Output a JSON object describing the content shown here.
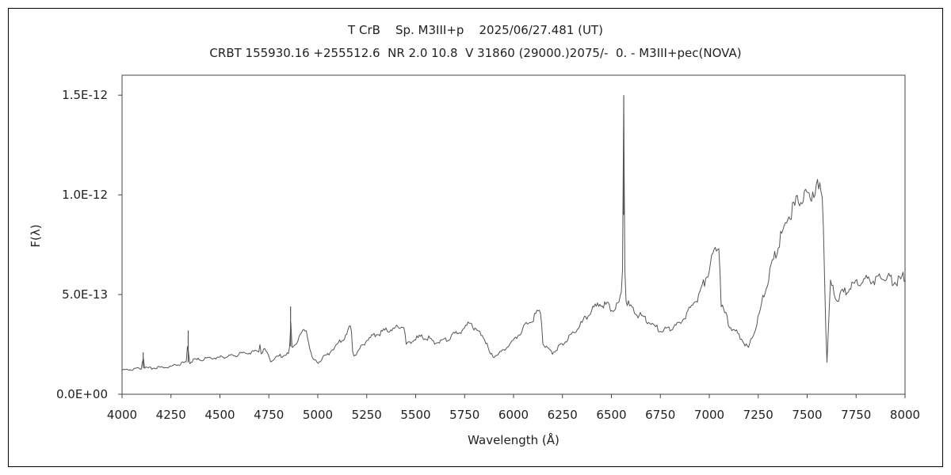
{
  "chart_data": {
    "type": "line",
    "title": "T CrB    Sp. M3III+p    2025/06/27.481 (UT)",
    "subtitle": "CRBT 155930.16 +255512.6  NR 2.0 10.8  V 31860 (29000.)2075/-  0. - M3III+pec(NOVA)",
    "xlabel": "Wavelength (Å)",
    "ylabel": "F(λ)",
    "xlim": [
      4000,
      8000
    ],
    "ylim": [
      0,
      1.6e-12
    ],
    "x_ticks": [
      4000,
      4250,
      4500,
      4750,
      5000,
      5250,
      5500,
      5750,
      6000,
      6250,
      6500,
      6750,
      7000,
      7250,
      7500,
      7750,
      8000
    ],
    "x_tick_labels": [
      "4000",
      "4250",
      "4500",
      "4750",
      "5000",
      "5250",
      "5500",
      "5750",
      "6000",
      "6250",
      "6500",
      "6750",
      "7000",
      "7250",
      "7500",
      "7750",
      "8000"
    ],
    "y_ticks": [
      0,
      5e-13,
      1e-12,
      1.5e-12
    ],
    "y_tick_labels": [
      "0.0E+00",
      "5.0E-13",
      "1.0E-12",
      "1.5E-12"
    ],
    "grid": false,
    "legend": "none",
    "line_color": "#555555",
    "series": [
      {
        "x": [
          4000,
          4050,
          4100,
          4108,
          4113,
          4120,
          4150,
          4200,
          4250,
          4280,
          4330,
          4338,
          4341,
          4346,
          4360,
          4400,
          4450,
          4500,
          4550,
          4600,
          4650,
          4700,
          4705,
          4710,
          4730,
          4760,
          4800,
          4850,
          4858,
          4861,
          4864,
          4870,
          4900,
          4940,
          4970,
          5000,
          5050,
          5100,
          5150,
          5170,
          5180,
          5200,
          5250,
          5300,
          5350,
          5400,
          5440,
          5450,
          5500,
          5550,
          5600,
          5650,
          5700,
          5750,
          5780,
          5800,
          5850,
          5880,
          5900,
          5950,
          6000,
          6050,
          6100,
          6140,
          6150,
          6170,
          6200,
          6250,
          6300,
          6350,
          6400,
          6450,
          6500,
          6540,
          6555,
          6560,
          6563,
          6566,
          6570,
          6600,
          6650,
          6700,
          6750,
          6800,
          6850,
          6900,
          6950,
          7000,
          7030,
          7050,
          7060,
          7100,
          7150,
          7200,
          7250,
          7300,
          7350,
          7400,
          7450,
          7500,
          7550,
          7580,
          7590,
          7600,
          7610,
          7620,
          7650,
          7700,
          7750,
          7800,
          7850,
          7900,
          7950,
          8000
        ],
        "values": [
          1.2e-13,
          1.25e-13,
          1.3e-13,
          2.1e-13,
          1.35e-13,
          1.3e-13,
          1.3e-13,
          1.35e-13,
          1.4e-13,
          1.5e-13,
          1.6e-13,
          3.2e-13,
          1.7e-13,
          1.6e-13,
          1.7e-13,
          1.75e-13,
          1.8e-13,
          1.85e-13,
          1.9e-13,
          2e-13,
          2.1e-13,
          2.2e-13,
          2.6e-13,
          2.1e-13,
          2.2e-13,
          1.7e-13,
          1.9e-13,
          2e-13,
          2.4e-13,
          4.4e-13,
          2.3e-13,
          2.3e-13,
          2.8e-13,
          3.3e-13,
          1.8e-13,
          1.6e-13,
          2e-13,
          2.5e-13,
          3e-13,
          3.5e-13,
          1.9e-13,
          2.1e-13,
          2.7e-13,
          3e-13,
          3.2e-13,
          3.3e-13,
          3.5e-13,
          2.5e-13,
          2.8e-13,
          2.9e-13,
          2.6e-13,
          2.7e-13,
          3e-13,
          3.3e-13,
          3.7e-13,
          3.2e-13,
          2.9e-13,
          2e-13,
          1.9e-13,
          2.2e-13,
          2.7e-13,
          3.3e-13,
          3.8e-13,
          4.3e-13,
          2.5e-13,
          2.3e-13,
          2.1e-13,
          2.5e-13,
          3e-13,
          3.6e-13,
          4.2e-13,
          4.6e-13,
          4.3e-13,
          4.6e-13,
          5.1e-13,
          9e-13,
          1.5e-12,
          1e-12,
          4.8e-13,
          4.3e-13,
          3.9e-13,
          3.6e-13,
          3.2e-13,
          3.3e-13,
          3.5e-13,
          4.3e-13,
          5e-13,
          6.3e-13,
          7.3e-13,
          7.6e-13,
          4.6e-13,
          3.5e-13,
          3e-13,
          2.3e-13,
          3.8e-13,
          5.8e-13,
          7.5e-13,
          8.9e-13,
          9.6e-13,
          1e-12,
          1.03e-12,
          1e-12,
          5.5e-13,
          1.4e-13,
          3.5e-13,
          5.6e-13,
          4.8e-13,
          5.2e-13,
          5.5e-13,
          5.8e-13,
          5.7e-13,
          5.9e-13,
          5.6e-13,
          5.9e-13
        ]
      }
    ]
  }
}
